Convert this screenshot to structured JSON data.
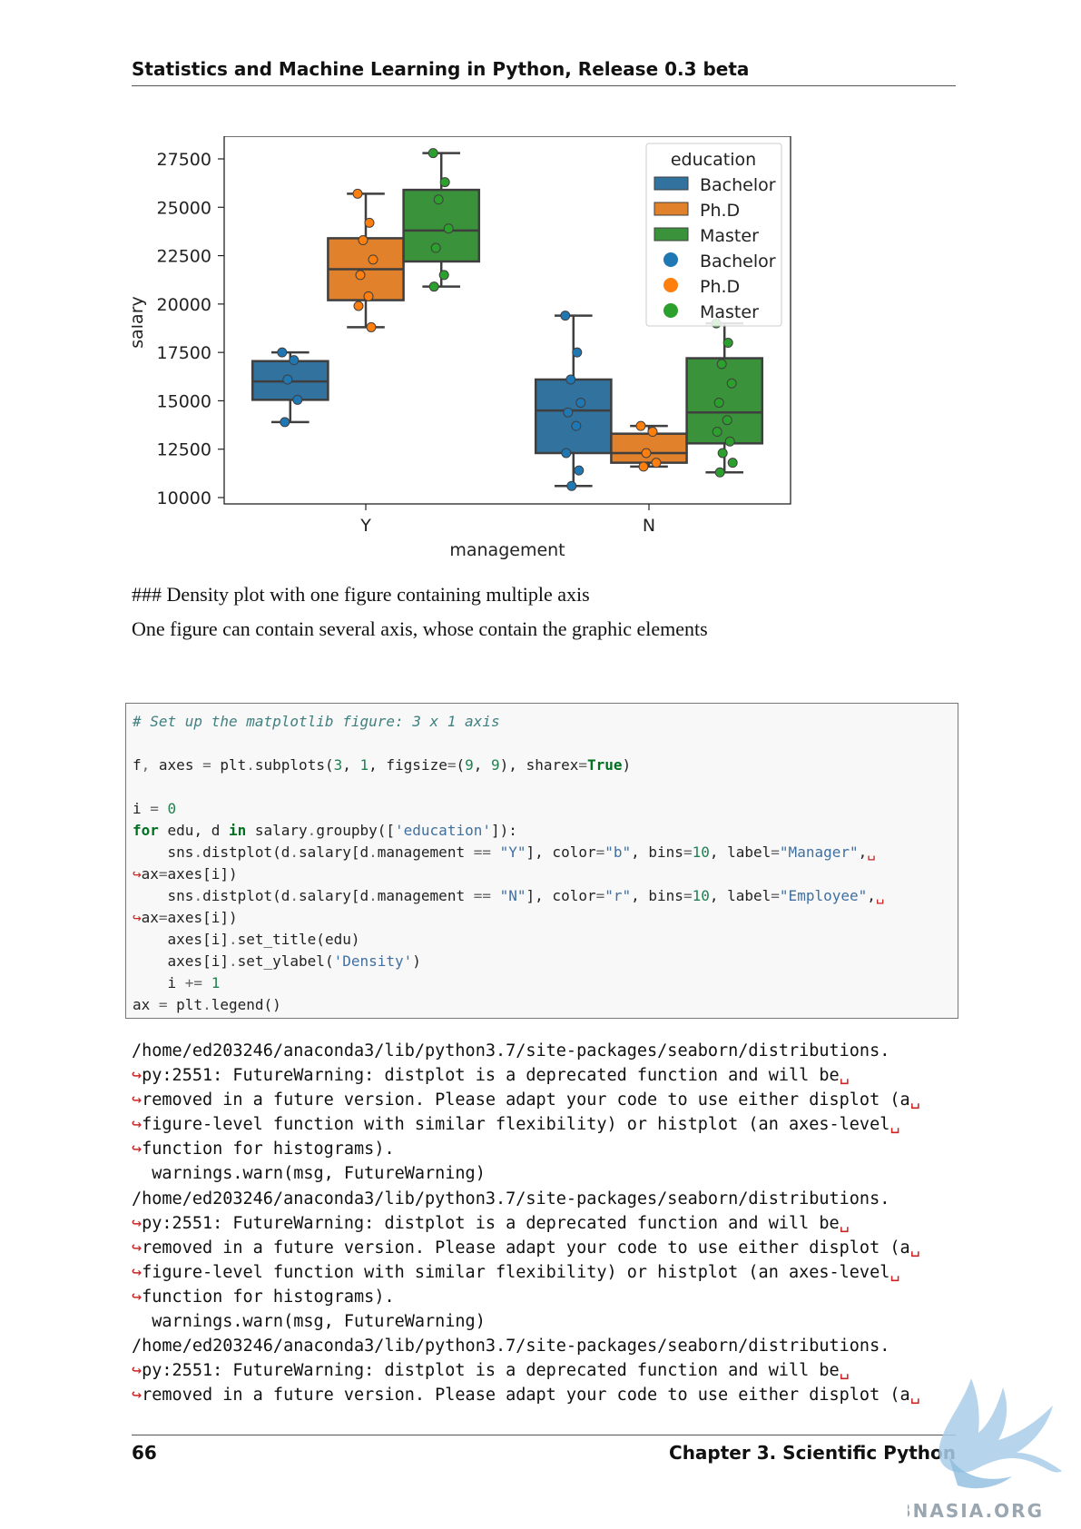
{
  "header": {
    "title": "Statistics and Machine Learning in Python, Release 0.3 beta"
  },
  "chart_data": {
    "type": "box",
    "xlabel": "management",
    "ylabel": "salary",
    "categories": [
      "Y",
      "N"
    ],
    "ylim": [
      10000,
      28500
    ],
    "yticks": [
      "10000",
      "12500",
      "15000",
      "17500",
      "20000",
      "22500",
      "25000",
      "27500"
    ],
    "legend": {
      "title": "education",
      "placement": "top-right",
      "entries": [
        {
          "label": "Bachelor",
          "kind": "box",
          "color": "#31729f"
        },
        {
          "label": "Ph.D",
          "kind": "box",
          "color": "#e1812c"
        },
        {
          "label": "Master",
          "kind": "box",
          "color": "#3a923a"
        },
        {
          "label": "Bachelor",
          "kind": "point",
          "color": "#1f77b4"
        },
        {
          "label": "Ph.D",
          "kind": "point",
          "color": "#ff7f0e"
        },
        {
          "label": "Master",
          "kind": "point",
          "color": "#2ca02c"
        }
      ]
    },
    "series": [
      {
        "name": "Bachelor",
        "color": "#31729f",
        "point_color": "#1f77b4",
        "boxes": [
          {
            "category": "Y",
            "whislo": 13900,
            "q1": 15050,
            "med": 16000,
            "q3": 17050,
            "whishi": 17500,
            "points": [
              17500,
              17100,
              16100,
              15050,
              13900
            ]
          },
          {
            "category": "N",
            "whislo": 10600,
            "q1": 12300,
            "med": 14500,
            "q3": 16100,
            "whishi": 19400,
            "points": [
              19400,
              17500,
              16100,
              14900,
              14400,
              13700,
              12300,
              11400,
              10600
            ]
          }
        ]
      },
      {
        "name": "Ph.D",
        "color": "#e1812c",
        "point_color": "#ff7f0e",
        "boxes": [
          {
            "category": "Y",
            "whislo": 18800,
            "q1": 20200,
            "med": 21800,
            "q3": 23400,
            "whishi": 25700,
            "points": [
              25700,
              24200,
              23300,
              22300,
              21500,
              20400,
              19900,
              18800
            ]
          },
          {
            "category": "N",
            "whislo": 11600,
            "q1": 11800,
            "med": 12300,
            "q3": 13300,
            "whishi": 13700,
            "points": [
              13700,
              13400,
              12300,
              11800,
              11600
            ]
          }
        ]
      },
      {
        "name": "Master",
        "color": "#3a923a",
        "point_color": "#2ca02c",
        "boxes": [
          {
            "category": "Y",
            "whislo": 20900,
            "q1": 22200,
            "med": 23800,
            "q3": 25900,
            "whishi": 27800,
            "points": [
              27800,
              26300,
              25400,
              23900,
              22900,
              21500,
              20900
            ]
          },
          {
            "category": "N",
            "whislo": 11300,
            "q1": 12800,
            "med": 14400,
            "q3": 17200,
            "whishi": 19000,
            "points": [
              19000,
              18000,
              16900,
              15900,
              14900,
              14000,
              13400,
              12900,
              12300,
              11800,
              11300
            ]
          }
        ]
      }
    ]
  },
  "body": {
    "heading": "### Density plot with one figure containing multiple axis",
    "intro": "One figure can contain several axis, whose contain the graphic elements"
  },
  "code": {
    "comment": "# Set up the matplotlib figure: 3 x 1 axis",
    "subplots": "f, axes = plt.subplots(3, 1, figsize=(9, 9), sharex=True)"
  },
  "output": {
    "path_line": "/home/ed203246/anaconda3/lib/python3.7/site-packages/seaborn/distributions.",
    "line_2": "py:2551: FutureWarning: distplot is a deprecated function and will be",
    "line_3": "removed in a future version. Please adapt your code to use either displot (a",
    "line_4": "figure-level function with similar flexibility) or histplot (an axes-level",
    "line_5": "function for histograms).",
    "warn_line": "  warnings.warn(msg, FutureWarning)"
  },
  "footer": {
    "page_number": "66",
    "chapter": "Chapter 3.  Scientific Python"
  },
  "watermark": {
    "text": "ABNASIA.ORG"
  }
}
